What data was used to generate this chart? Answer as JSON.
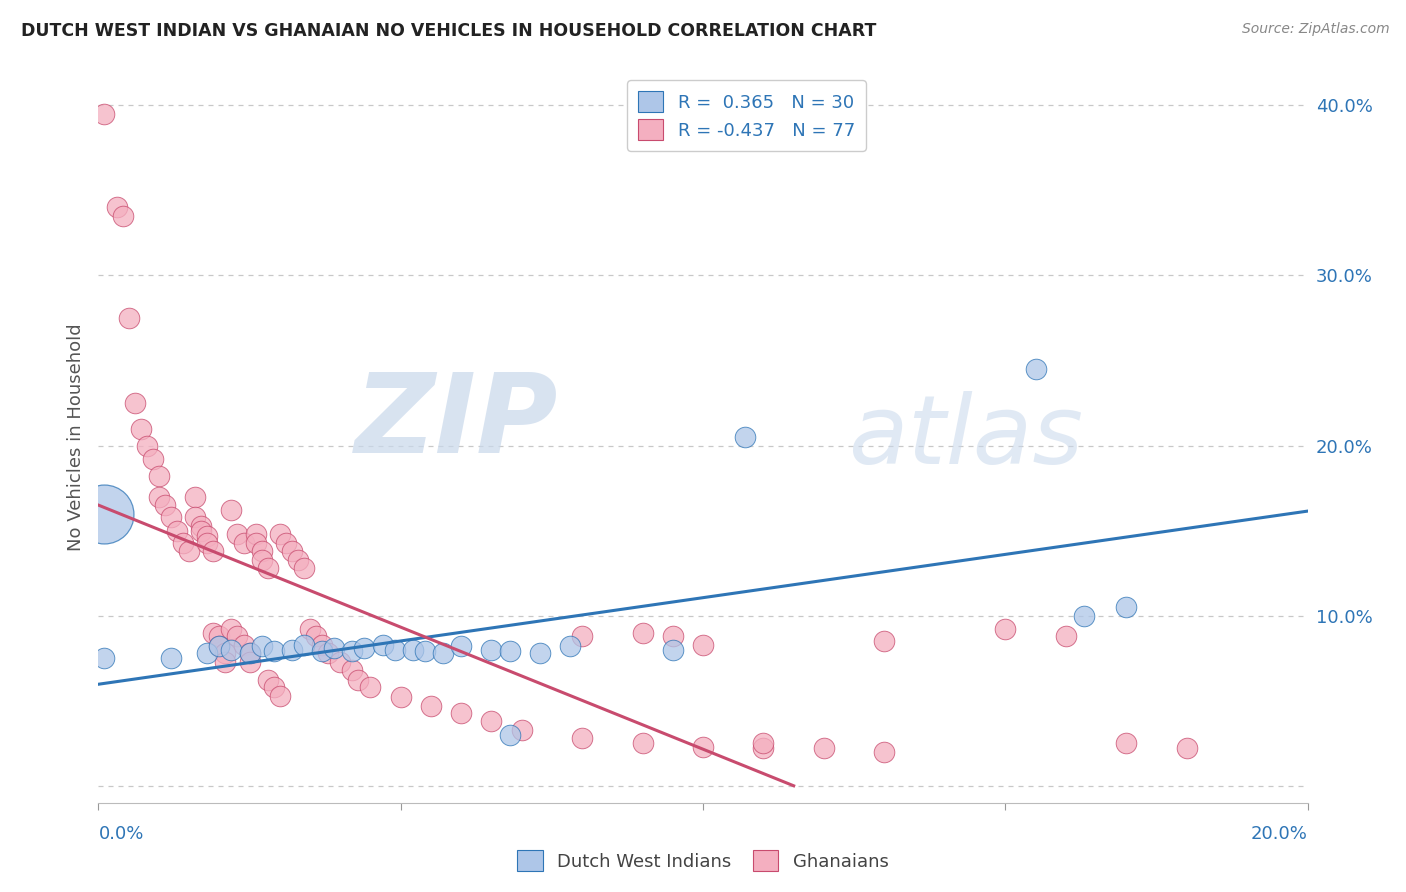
{
  "title": "DUTCH WEST INDIAN VS GHANAIAN NO VEHICLES IN HOUSEHOLD CORRELATION CHART",
  "source": "Source: ZipAtlas.com",
  "ylabel": "No Vehicles in Household",
  "xlim": [
    0.0,
    0.2
  ],
  "ylim": [
    -0.01,
    0.42
  ],
  "watermark_zip": "ZIP",
  "watermark_atlas": "atlas",
  "legend_line1": "R =  0.365   N = 30",
  "legend_line2": "R = -0.437   N = 77",
  "blue_color": "#aec6e8",
  "pink_color": "#f4afc0",
  "blue_line_color": "#2e75b6",
  "pink_line_color": "#c84b6e",
  "blue_scatter": [
    [
      0.001,
      0.075
    ],
    [
      0.012,
      0.075
    ],
    [
      0.018,
      0.078
    ],
    [
      0.02,
      0.082
    ],
    [
      0.022,
      0.08
    ],
    [
      0.025,
      0.078
    ],
    [
      0.027,
      0.082
    ],
    [
      0.029,
      0.079
    ],
    [
      0.032,
      0.08
    ],
    [
      0.034,
      0.083
    ],
    [
      0.037,
      0.079
    ],
    [
      0.039,
      0.081
    ],
    [
      0.042,
      0.079
    ],
    [
      0.044,
      0.081
    ],
    [
      0.047,
      0.083
    ],
    [
      0.049,
      0.08
    ],
    [
      0.052,
      0.08
    ],
    [
      0.054,
      0.079
    ],
    [
      0.057,
      0.078
    ],
    [
      0.06,
      0.082
    ],
    [
      0.065,
      0.08
    ],
    [
      0.068,
      0.079
    ],
    [
      0.073,
      0.078
    ],
    [
      0.078,
      0.082
    ],
    [
      0.095,
      0.08
    ],
    [
      0.107,
      0.205
    ],
    [
      0.155,
      0.245
    ],
    [
      0.163,
      0.1
    ],
    [
      0.17,
      0.105
    ],
    [
      0.068,
      0.03
    ]
  ],
  "blue_scatter_big": [
    [
      0.001,
      0.16
    ]
  ],
  "pink_scatter": [
    [
      0.001,
      0.395
    ],
    [
      0.003,
      0.34
    ],
    [
      0.004,
      0.335
    ],
    [
      0.005,
      0.275
    ],
    [
      0.006,
      0.225
    ],
    [
      0.007,
      0.21
    ],
    [
      0.008,
      0.2
    ],
    [
      0.009,
      0.192
    ],
    [
      0.01,
      0.182
    ],
    [
      0.01,
      0.17
    ],
    [
      0.011,
      0.165
    ],
    [
      0.012,
      0.158
    ],
    [
      0.013,
      0.15
    ],
    [
      0.014,
      0.143
    ],
    [
      0.015,
      0.138
    ],
    [
      0.016,
      0.17
    ],
    [
      0.016,
      0.158
    ],
    [
      0.017,
      0.153
    ],
    [
      0.017,
      0.15
    ],
    [
      0.018,
      0.147
    ],
    [
      0.018,
      0.143
    ],
    [
      0.019,
      0.138
    ],
    [
      0.019,
      0.09
    ],
    [
      0.02,
      0.088
    ],
    [
      0.02,
      0.082
    ],
    [
      0.021,
      0.078
    ],
    [
      0.021,
      0.073
    ],
    [
      0.022,
      0.162
    ],
    [
      0.022,
      0.092
    ],
    [
      0.023,
      0.088
    ],
    [
      0.023,
      0.148
    ],
    [
      0.024,
      0.143
    ],
    [
      0.024,
      0.083
    ],
    [
      0.025,
      0.078
    ],
    [
      0.025,
      0.073
    ],
    [
      0.026,
      0.148
    ],
    [
      0.026,
      0.143
    ],
    [
      0.027,
      0.138
    ],
    [
      0.027,
      0.133
    ],
    [
      0.028,
      0.128
    ],
    [
      0.028,
      0.062
    ],
    [
      0.029,
      0.058
    ],
    [
      0.03,
      0.148
    ],
    [
      0.03,
      0.053
    ],
    [
      0.031,
      0.143
    ],
    [
      0.032,
      0.138
    ],
    [
      0.033,
      0.133
    ],
    [
      0.034,
      0.128
    ],
    [
      0.035,
      0.092
    ],
    [
      0.036,
      0.088
    ],
    [
      0.037,
      0.083
    ],
    [
      0.038,
      0.078
    ],
    [
      0.04,
      0.073
    ],
    [
      0.042,
      0.068
    ],
    [
      0.043,
      0.062
    ],
    [
      0.045,
      0.058
    ],
    [
      0.05,
      0.052
    ],
    [
      0.055,
      0.047
    ],
    [
      0.06,
      0.043
    ],
    [
      0.065,
      0.038
    ],
    [
      0.07,
      0.033
    ],
    [
      0.08,
      0.028
    ],
    [
      0.09,
      0.025
    ],
    [
      0.1,
      0.023
    ],
    [
      0.11,
      0.022
    ],
    [
      0.13,
      0.02
    ],
    [
      0.08,
      0.088
    ],
    [
      0.09,
      0.09
    ],
    [
      0.095,
      0.088
    ],
    [
      0.1,
      0.083
    ],
    [
      0.11,
      0.025
    ],
    [
      0.12,
      0.022
    ],
    [
      0.13,
      0.085
    ],
    [
      0.15,
      0.092
    ],
    [
      0.16,
      0.088
    ],
    [
      0.17,
      0.025
    ],
    [
      0.18,
      0.022
    ]
  ],
  "ytick_positions": [
    0.0,
    0.1,
    0.2,
    0.3,
    0.4
  ],
  "ytick_labels": [
    "",
    "10.0%",
    "20.0%",
    "30.0%",
    "40.0%"
  ],
  "grid_color": "#c8c8c8",
  "background_color": "#ffffff",
  "blue_label": "Dutch West Indians",
  "pink_label": "Ghanaians"
}
